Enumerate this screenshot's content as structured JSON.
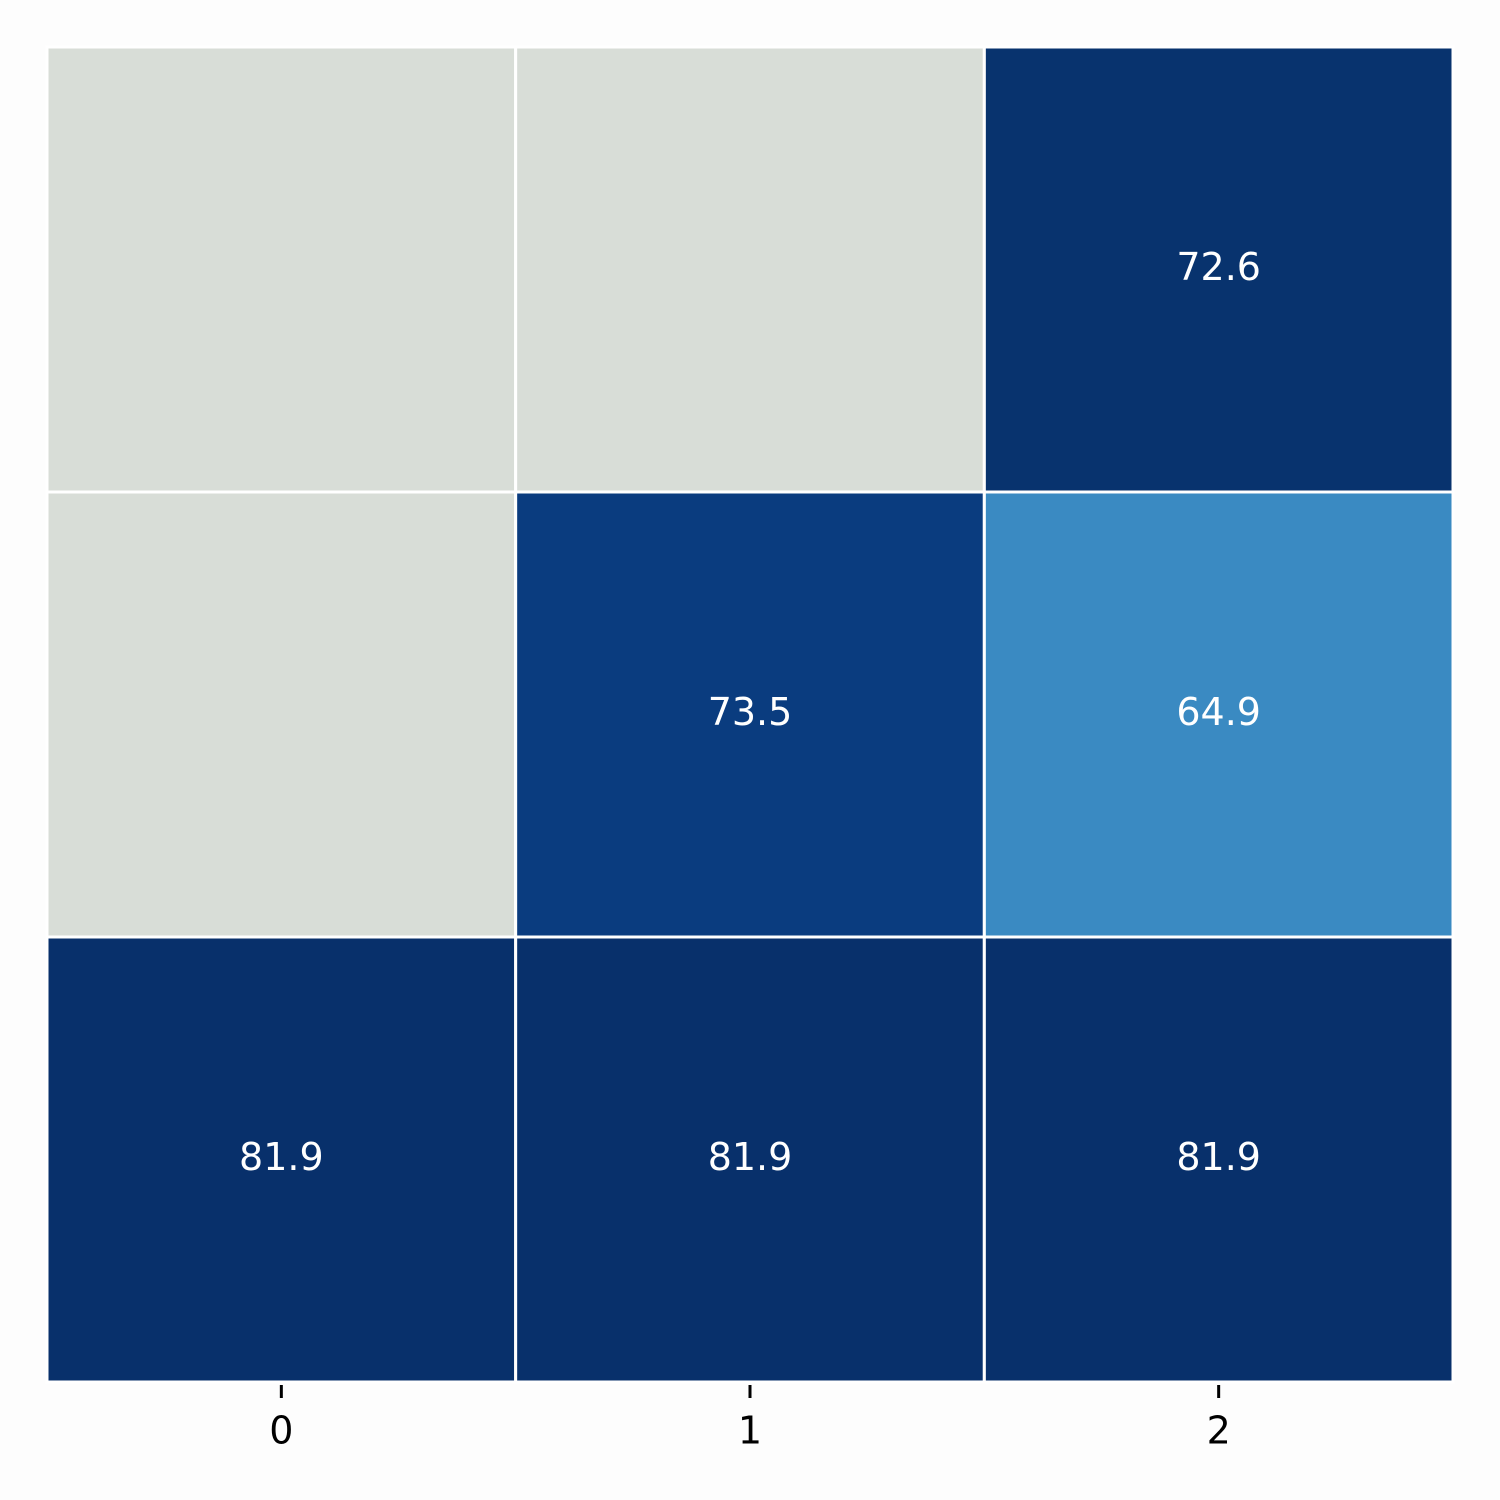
{
  "chart_data": {
    "type": "heatmap",
    "columns": [
      "0",
      "1",
      "2"
    ],
    "values": [
      [
        null,
        null,
        72.6
      ],
      [
        null,
        73.5,
        64.9
      ],
      [
        81.9,
        81.9,
        81.9
      ]
    ],
    "colors": [
      [
        null,
        null,
        "#08336e"
      ],
      [
        null,
        "#0a3c7f",
        "#3a8ac2"
      ],
      [
        "#08306b",
        "#08306b",
        "#08306b"
      ]
    ],
    "missing_color": "#d8ddd7",
    "annotation_color": "#ffffff",
    "cell_border_color": "#ffffff"
  }
}
